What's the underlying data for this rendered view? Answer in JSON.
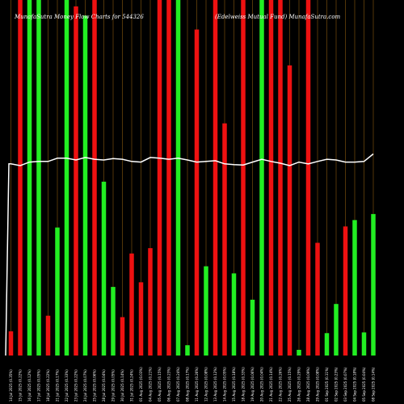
{
  "chart_data": {
    "type": "bar",
    "title_left": "MunafaSutra  Money Flow  Charts for 544326",
    "title_right": "(Edelweiss Mutual Fund) MunafaSutra.com",
    "xlabel": "",
    "ylabel": "",
    "grid": "vertical",
    "ylim": [
      0,
      100
    ],
    "categories": [
      "14 Jul 2025",
      "15 Jul 2025",
      "16 Jul 2025",
      "17 Jul 2025",
      "18 Jul 2025",
      "21 Jul 2025",
      "22 Jul 2025",
      "23 Jul 2025",
      "24 Jul 2025",
      "25 Jul 2025",
      "28 Jul 2025",
      "29 Jul 2025",
      "30 Jul 2025",
      "31 Jul 2025",
      "01 Aug 2025",
      "04 Aug 2025",
      "05 Aug 2025",
      "06 Aug 2025",
      "07 Aug 2025",
      "08 Aug 2025",
      "11 Aug 2025",
      "12 Aug 2025",
      "13 Aug 2025",
      "14 Aug 2025",
      "15 Aug 2025",
      "18 Aug 2025",
      "19 Aug 2025",
      "20 Aug 2025",
      "21 Aug 2025",
      "22 Aug 2025",
      "25 Aug 2025",
      "26 Aug 2025",
      "28 Aug 2025",
      "29 Aug 2025",
      "01 Sep 2025",
      "02 Sep 2025",
      "03 Sep 2025",
      "04 Sep 2025",
      "05 Sep 2025",
      "08 Sep 2025"
    ],
    "tick_labels": [
      "14 Jul 2025 (0.35%)",
      "15 Jul 2025 (0.22%)",
      "16 Jul 2025 (0.12%)",
      "17 Jul 2025 (0.05%)",
      "18 Jul 2025 (0.22%)",
      "21 Jul 2025 (0.17%)",
      "22 Jul 2025 (0.33%)",
      "23 Jul 2025 (0.22%)",
      "24 Jul 2025 (0.07%)",
      "25 Jul 2025 (0.06%)",
      "28 Jul 2025 (0.04%)",
      "29 Jul 2025 (0.05%)",
      "30 Jul 2025 (0.14%)",
      "31 Jul 2025 (0.24%)",
      "01 Aug 2025 (0.03%)",
      "04 Aug 2025 (0.21%)",
      "05 Aug 2025 (0.15%)",
      "06 Aug 2025 (0.23%)",
      "07 Aug 2025 (0.24%)",
      "08 Aug 2025 (0.17%)",
      "11 Aug 2025 (0.26%)",
      "12 Aug 2025 (0.08%)",
      "13 Aug 2025 (0.12%)",
      "14 Aug 2025 (0.05%)",
      "15 Aug 2025 (0.18%)",
      "18 Aug 2025 (0.33%)",
      "19 Aug 2025 (0.06%)",
      "20 Aug 2025 (0.04%)",
      "21 Aug 2025 (0.14%)",
      "22 Aug 2025 (0.26%)",
      "25 Aug 2025 (0.15%)",
      "26 Aug 2025 (0.29%)",
      "28 Aug 2025 (0.09%)",
      "29 Aug 2025 (0.08%)",
      "01 Sep 2025 (0.11%)",
      "02 Sep 2025 (0.23%)",
      "03 Sep 2025 (0.07%)",
      "04 Sep 2025 (0.18%)",
      "05 Sep 2025 (0.04%)",
      "08 Sep 2025 (0.14%)"
    ],
    "colors": {
      "up": "#22ee22",
      "down": "#ee1111",
      "line": "#ffffff",
      "grid": "#8a5a10",
      "background": "#000000"
    },
    "bars": [
      {
        "value": 6.8,
        "color": "down"
      },
      {
        "value": 100,
        "color": "down"
      },
      {
        "value": 100,
        "color": "up"
      },
      {
        "value": 100,
        "color": "up"
      },
      {
        "value": 11.2,
        "color": "down"
      },
      {
        "value": 36.0,
        "color": "up"
      },
      {
        "value": 100,
        "color": "up"
      },
      {
        "value": 98.2,
        "color": "down"
      },
      {
        "value": 95.6,
        "color": "up"
      },
      {
        "value": 100,
        "color": "down"
      },
      {
        "value": 48.9,
        "color": "up"
      },
      {
        "value": 19.3,
        "color": "up"
      },
      {
        "value": 10.8,
        "color": "down"
      },
      {
        "value": 28.7,
        "color": "down"
      },
      {
        "value": 20.6,
        "color": "down"
      },
      {
        "value": 30.2,
        "color": "down"
      },
      {
        "value": 100,
        "color": "down"
      },
      {
        "value": 100,
        "color": "down"
      },
      {
        "value": 100,
        "color": "up"
      },
      {
        "value": 2.9,
        "color": "up"
      },
      {
        "value": 91.7,
        "color": "down"
      },
      {
        "value": 25.1,
        "color": "up"
      },
      {
        "value": 100,
        "color": "down"
      },
      {
        "value": 65.3,
        "color": "down"
      },
      {
        "value": 23.1,
        "color": "up"
      },
      {
        "value": 100,
        "color": "down"
      },
      {
        "value": 15.7,
        "color": "up"
      },
      {
        "value": 100,
        "color": "up"
      },
      {
        "value": 100,
        "color": "down"
      },
      {
        "value": 100,
        "color": "down"
      },
      {
        "value": 81.6,
        "color": "down"
      },
      {
        "value": 1.6,
        "color": "up"
      },
      {
        "value": 100,
        "color": "down"
      },
      {
        "value": 31.7,
        "color": "down"
      },
      {
        "value": 6.3,
        "color": "up"
      },
      {
        "value": 14.5,
        "color": "up"
      },
      {
        "value": 36.3,
        "color": "down"
      },
      {
        "value": 38.1,
        "color": "up"
      },
      {
        "value": 6.5,
        "color": "up"
      },
      {
        "value": 39.8,
        "color": "up"
      }
    ],
    "line_values": [
      53.9,
      53.4,
      54.4,
      54.6,
      54.6,
      55.5,
      55.5,
      55.0,
      55.7,
      55.2,
      55.0,
      55.4,
      55.2,
      54.6,
      54.4,
      55.7,
      55.5,
      55.2,
      55.5,
      55.0,
      54.4,
      54.6,
      54.8,
      53.9,
      53.7,
      53.6,
      54.4,
      55.2,
      54.6,
      54.1,
      53.4,
      54.4,
      53.9,
      54.6,
      55.2,
      55.0,
      54.4,
      54.4,
      54.6,
      56.7
    ]
  }
}
